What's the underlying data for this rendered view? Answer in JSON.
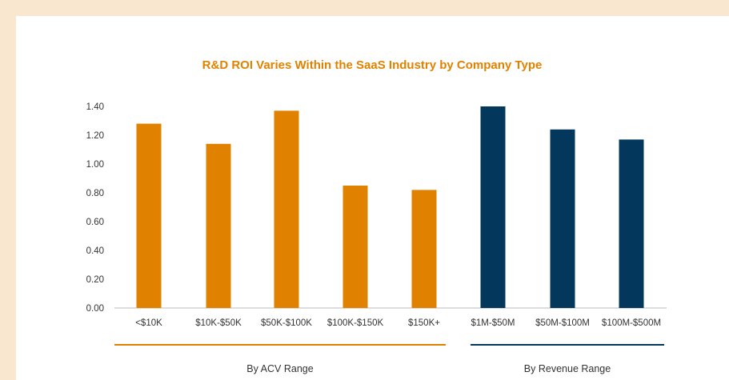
{
  "colors": {
    "page_background": "#f9e7cf",
    "card_background": "#ffffff",
    "acv": "#e08200",
    "revenue": "#03385c",
    "axis_text": "#333333",
    "axis_line": "#bbbbbb"
  },
  "chart_data": {
    "type": "bar",
    "title": "R&D ROI Varies Within the SaaS Industry by Company Type",
    "xlabel": "",
    "ylabel": "",
    "ylim": [
      0,
      1.4
    ],
    "yticks": [
      "0.00",
      "0.20",
      "0.40",
      "0.60",
      "0.80",
      "1.00",
      "1.20",
      "1.40"
    ],
    "ytick_values": [
      0,
      0.2,
      0.4,
      0.6,
      0.8,
      1.0,
      1.2,
      1.4
    ],
    "grid": false,
    "legend": "none",
    "categories": [
      "<$10K",
      "$10K-$50K",
      "$50K-$100K",
      "$100K-$150K",
      "$150K+",
      "$1M-$50M",
      "$50M-$100M",
      "$100M-$500M"
    ],
    "values": [
      1.28,
      1.14,
      1.37,
      0.85,
      0.82,
      1.4,
      1.24,
      1.17
    ],
    "groups": [
      {
        "label": "By ACV Range",
        "color": "#e08200",
        "start": 0,
        "end": 4
      },
      {
        "label": "By Revenue Range",
        "color": "#03385c",
        "start": 5,
        "end": 7
      }
    ]
  }
}
